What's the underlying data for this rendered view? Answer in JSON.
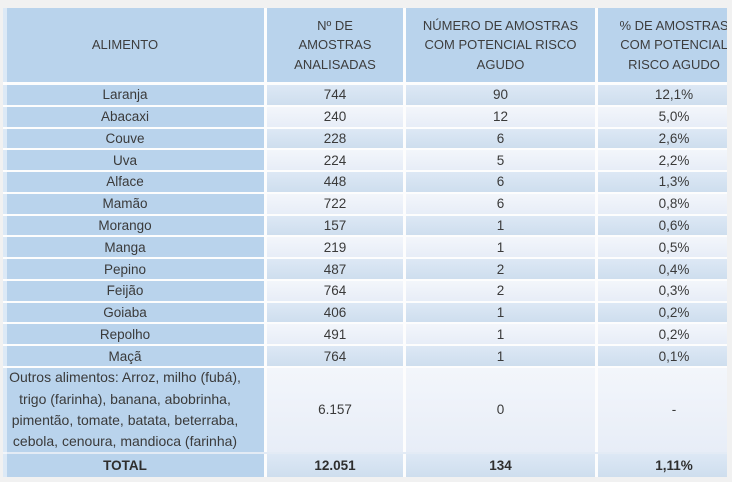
{
  "page": {
    "background": "#f1f1f1",
    "accent_blue": "#b9d3ec",
    "band_dark": "#d4e2f1",
    "band_light": "#ecf1f8",
    "text_color": "#3a3a3a"
  },
  "table": {
    "columns": [
      {
        "id": "alimento",
        "label": "ALIMENTO",
        "lines": [
          "ALIMENTO"
        ]
      },
      {
        "id": "amostras-analisadas",
        "label": "Nº DE AMOSTRAS ANALISADAS",
        "lines": [
          "Nº DE",
          "AMOSTRAS",
          "ANALISADAS"
        ]
      },
      {
        "id": "amostras-risco",
        "label": "NÚMERO DE AMOSTRAS COM POTENCIAL RISCO AGUDO",
        "lines": [
          "NÚMERO DE AMOSTRAS",
          "COM POTENCIAL RISCO",
          "AGUDO"
        ]
      },
      {
        "id": "pct-risco",
        "label": "% DE AMOSTRAS COM POTENCIAL RISCO AGUDO",
        "lines": [
          "% DE AMOSTRAS",
          "COM POTENCIAL",
          "RISCO AGUDO"
        ]
      }
    ],
    "rows": [
      [
        "Laranja",
        "744",
        "90",
        "12,1%"
      ],
      [
        "Abacaxi",
        "240",
        "12",
        "5,0%"
      ],
      [
        "Couve",
        "228",
        "6",
        "2,6%"
      ],
      [
        "Uva",
        "224",
        "5",
        "2,2%"
      ],
      [
        "Alface",
        "448",
        "6",
        "1,3%"
      ],
      [
        "Mamão",
        "722",
        "6",
        "0,8%"
      ],
      [
        "Morango",
        "157",
        "1",
        "0,6%"
      ],
      [
        "Manga",
        "219",
        "1",
        "0,5%"
      ],
      [
        "Pepino",
        "487",
        "2",
        "0,4%"
      ],
      [
        "Feijão",
        "764",
        "2",
        "0,3%"
      ],
      [
        "Goiaba",
        "406",
        "1",
        "0,2%"
      ],
      [
        "Repolho",
        "491",
        "1",
        "0,2%"
      ],
      [
        "Maçã",
        "764",
        "1",
        "0,1%"
      ]
    ],
    "other_row": {
      "lines": [
        "Outros alimentos: Arroz, milho (fubá),",
        "trigo (farinha), banana, abobrinha,",
        "pimentão, tomate, batata, beterraba,",
        "cebola, cenoura, mandioca (farinha)"
      ],
      "analisadas": "6.157",
      "risco": "0",
      "pct": "-"
    },
    "total_row": [
      "TOTAL",
      "12.051",
      "134",
      "1,11%"
    ]
  },
  "chart_data": {
    "type": "table",
    "title": "",
    "columns": [
      "ALIMENTO",
      "Nº DE AMOSTRAS ANALISADAS",
      "NÚMERO DE AMOSTRAS COM POTENCIAL RISCO AGUDO",
      "% DE AMOSTRAS COM POTENCIAL RISCO AGUDO"
    ],
    "rows": [
      [
        "Laranja",
        744,
        90,
        "12,1%"
      ],
      [
        "Abacaxi",
        240,
        12,
        "5,0%"
      ],
      [
        "Couve",
        228,
        6,
        "2,6%"
      ],
      [
        "Uva",
        224,
        5,
        "2,2%"
      ],
      [
        "Alface",
        448,
        6,
        "1,3%"
      ],
      [
        "Mamão",
        722,
        6,
        "0,8%"
      ],
      [
        "Morango",
        157,
        1,
        "0,6%"
      ],
      [
        "Manga",
        219,
        1,
        "0,5%"
      ],
      [
        "Pepino",
        487,
        2,
        "0,4%"
      ],
      [
        "Feijão",
        764,
        2,
        "0,3%"
      ],
      [
        "Goiaba",
        406,
        1,
        "0,2%"
      ],
      [
        "Repolho",
        491,
        1,
        "0,2%"
      ],
      [
        "Maçã",
        764,
        1,
        "0,1%"
      ],
      [
        "Outros alimentos: Arroz, milho (fubá), trigo (farinha), banana, abobrinha, pimentão, tomate, batata, beterraba, cebola, cenoura, mandioca (farinha)",
        6157,
        0,
        "-"
      ],
      [
        "TOTAL",
        12051,
        134,
        "1,11%"
      ]
    ]
  }
}
